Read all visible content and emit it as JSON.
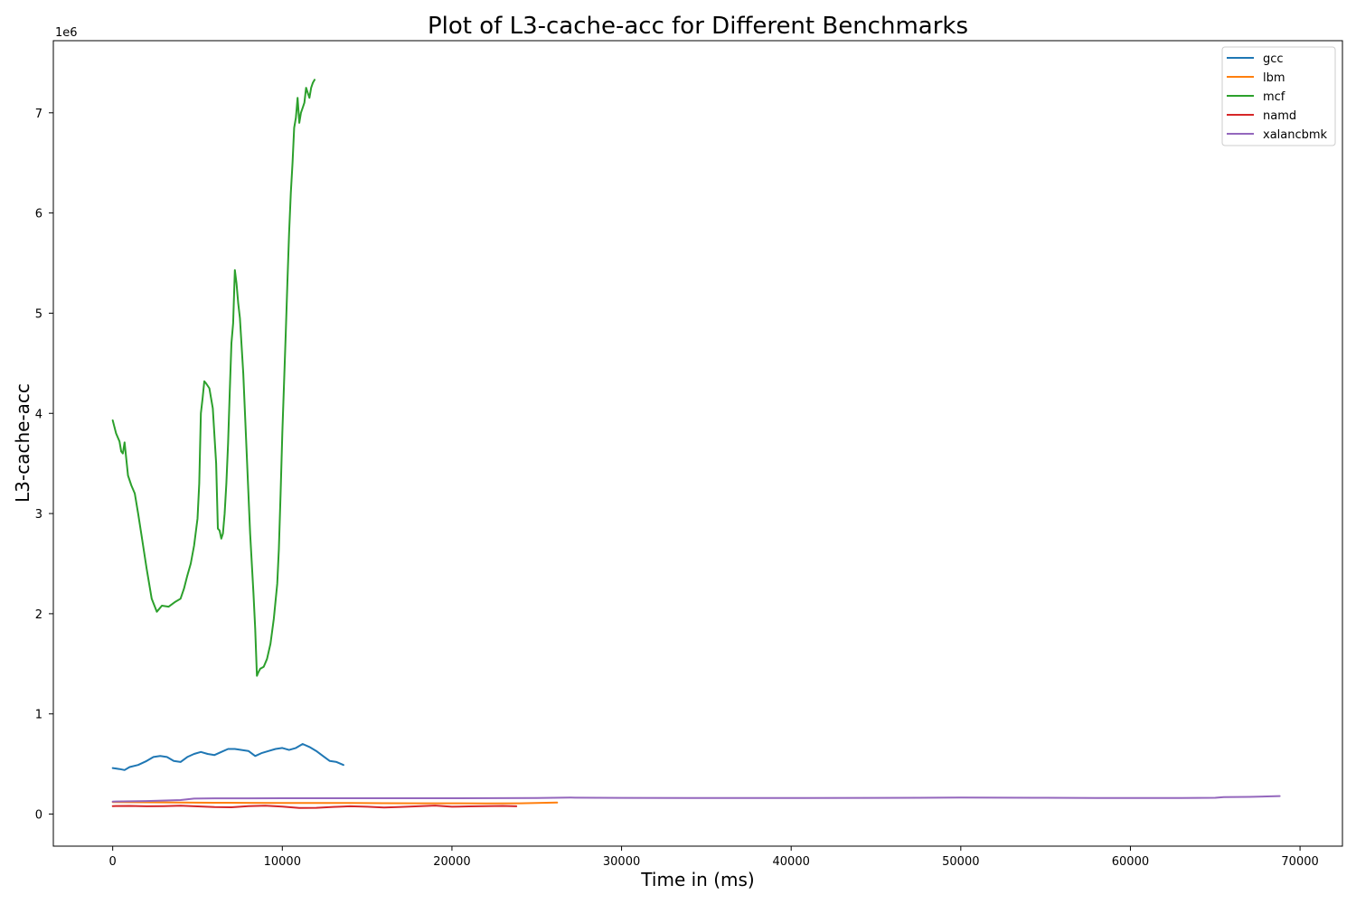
{
  "chart_data": {
    "type": "line",
    "title": "Plot of L3-cache-acc for Different Benchmarks",
    "xlabel": "Time in (ms)",
    "ylabel": "L3-cache-acc",
    "y_offset_label": "1e6",
    "xlim": [
      -3500,
      72500
    ],
    "ylim": [
      -320000,
      7720000
    ],
    "x_ticks": [
      0,
      10000,
      20000,
      30000,
      40000,
      50000,
      60000,
      70000
    ],
    "x_tick_labels": [
      "0",
      "10000",
      "20000",
      "30000",
      "40000",
      "50000",
      "60000",
      "70000"
    ],
    "y_ticks": [
      0,
      1000000,
      2000000,
      3000000,
      4000000,
      5000000,
      6000000,
      7000000
    ],
    "y_tick_labels": [
      "0",
      "1",
      "2",
      "3",
      "4",
      "5",
      "6",
      "7"
    ],
    "grid": false,
    "legend_position": "top-right",
    "series": [
      {
        "name": "gcc",
        "color": "#1f77b4",
        "x": [
          0,
          400,
          700,
          1000,
          1500,
          2000,
          2400,
          2800,
          3200,
          3600,
          4000,
          4400,
          4800,
          5200,
          5600,
          6000,
          6400,
          6800,
          7200,
          7600,
          8000,
          8400,
          8800,
          9200,
          9600,
          10000,
          10400,
          10800,
          11200,
          11600,
          12000,
          12400,
          12800,
          13200,
          13600
        ],
        "y": [
          460000,
          450000,
          440000,
          470000,
          490000,
          530000,
          570000,
          580000,
          570000,
          530000,
          520000,
          570000,
          600000,
          620000,
          600000,
          590000,
          620000,
          650000,
          650000,
          640000,
          630000,
          580000,
          610000,
          630000,
          650000,
          660000,
          640000,
          660000,
          700000,
          670000,
          630000,
          580000,
          530000,
          520000,
          490000
        ]
      },
      {
        "name": "lbm",
        "color": "#ff7f0e",
        "x": [
          0,
          2000,
          4000,
          6000,
          8000,
          10000,
          12000,
          14000,
          16000,
          18000,
          20000,
          22000,
          24000,
          26200
        ],
        "y": [
          120000,
          118000,
          115000,
          113000,
          112000,
          111000,
          111000,
          110000,
          109000,
          108000,
          108000,
          107000,
          108000,
          115000
        ]
      },
      {
        "name": "mcf",
        "color": "#2ca02c",
        "x": [
          0,
          200,
          400,
          500,
          600,
          700,
          900,
          1100,
          1300,
          1500,
          1700,
          2000,
          2300,
          2600,
          2900,
          3300,
          3700,
          4000,
          4200,
          4400,
          4600,
          4800,
          5000,
          5100,
          5200,
          5300,
          5400,
          5500,
          5700,
          5900,
          6100,
          6200,
          6300,
          6400,
          6500,
          6600,
          6700,
          6800,
          6900,
          7000,
          7100,
          7200,
          7300,
          7400,
          7500,
          7700,
          7900,
          8100,
          8300,
          8400,
          8500,
          8600,
          8700,
          8900,
          9100,
          9300,
          9500,
          9700,
          9800,
          9900,
          10000,
          10100,
          10200,
          10300,
          10400,
          10500,
          10600,
          10700,
          10800,
          10900,
          11000,
          11100,
          11200,
          11300,
          11400,
          11500,
          11600,
          11700,
          11800,
          11900
        ],
        "y": [
          3930000,
          3800000,
          3720000,
          3620000,
          3600000,
          3710000,
          3380000,
          3280000,
          3200000,
          3000000,
          2780000,
          2450000,
          2150000,
          2020000,
          2080000,
          2070000,
          2120000,
          2150000,
          2250000,
          2380000,
          2500000,
          2680000,
          2950000,
          3300000,
          4000000,
          4150000,
          4320000,
          4300000,
          4250000,
          4050000,
          3500000,
          2850000,
          2830000,
          2750000,
          2800000,
          3000000,
          3300000,
          3700000,
          4200000,
          4700000,
          4900000,
          5430000,
          5300000,
          5100000,
          4950000,
          4400000,
          3600000,
          2800000,
          2200000,
          1850000,
          1380000,
          1420000,
          1450000,
          1470000,
          1550000,
          1700000,
          1950000,
          2300000,
          2650000,
          3200000,
          3800000,
          4300000,
          4800000,
          5300000,
          5800000,
          6200000,
          6500000,
          6850000,
          6950000,
          7150000,
          6900000,
          7000000,
          7050000,
          7100000,
          7250000,
          7200000,
          7150000,
          7250000,
          7300000,
          7330000
        ]
      },
      {
        "name": "namd",
        "color": "#d62728",
        "x": [
          0,
          1000,
          2000,
          3000,
          4000,
          5000,
          6000,
          7000,
          8000,
          9000,
          10000,
          11000,
          12000,
          13000,
          14000,
          15000,
          16000,
          17000,
          18000,
          19000,
          20000,
          21000,
          22000,
          23000,
          23800
        ],
        "y": [
          80000,
          82000,
          78000,
          80000,
          83000,
          77000,
          70000,
          68000,
          80000,
          83000,
          75000,
          62000,
          63000,
          72000,
          78000,
          73000,
          65000,
          72000,
          78000,
          85000,
          73000,
          77000,
          80000,
          82000,
          78000
        ]
      },
      {
        "name": "xalancbmk",
        "color": "#9467bd",
        "x": [
          0,
          2000,
          4000,
          4800,
          6000,
          8000,
          10000,
          15000,
          20000,
          25000,
          27000,
          30000,
          35000,
          40000,
          45000,
          50000,
          55000,
          58000,
          60000,
          63000,
          65000,
          65500,
          67000,
          68800
        ],
        "y": [
          125000,
          130000,
          140000,
          155000,
          157000,
          157000,
          158000,
          158000,
          158000,
          160000,
          165000,
          162000,
          160000,
          160000,
          162000,
          165000,
          163000,
          160000,
          160000,
          160000,
          163000,
          170000,
          172000,
          180000
        ]
      }
    ]
  }
}
